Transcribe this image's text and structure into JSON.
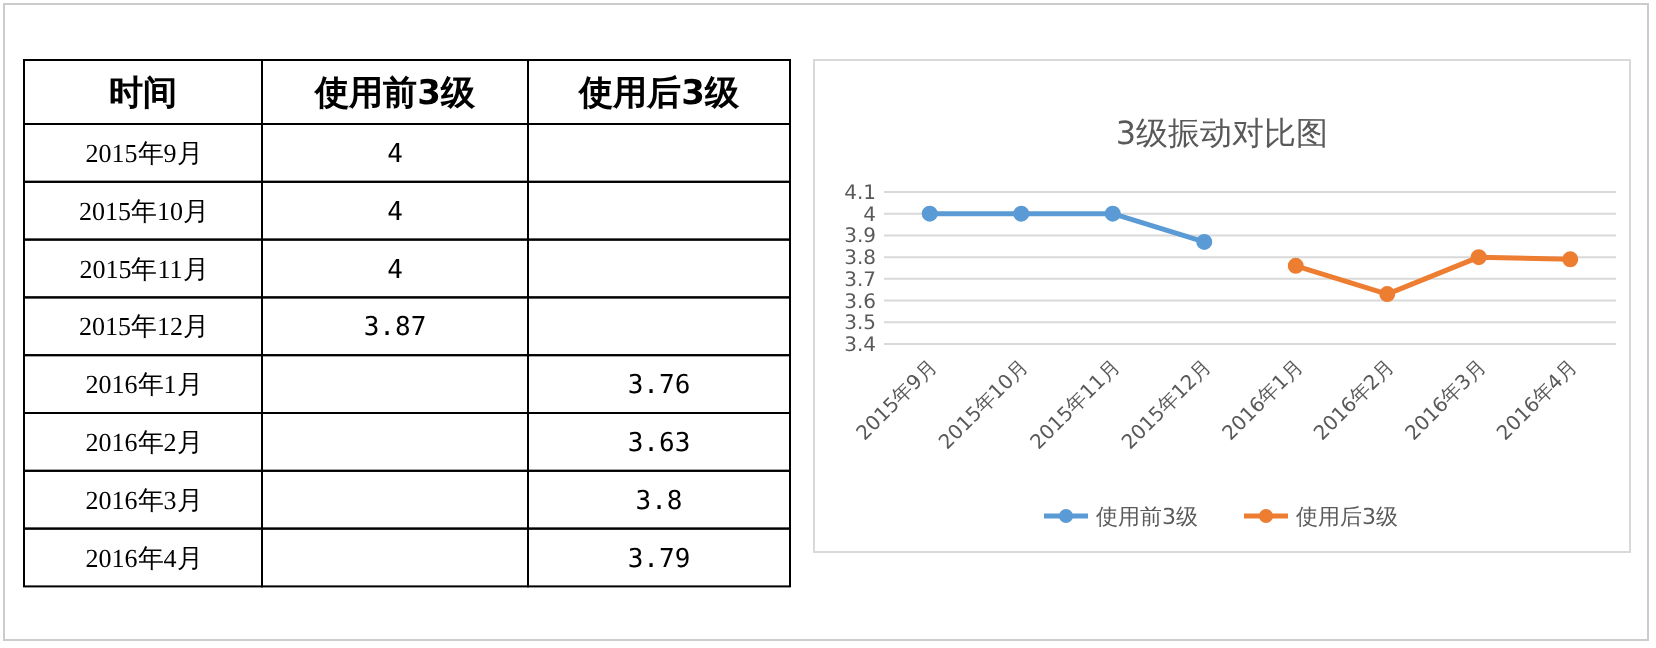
{
  "chart_data": [
    {
      "type": "other",
      "annotations": [
        "时间"
      ],
      "categories": [
        "2015年9月",
        "2015年10月",
        "2015年11月",
        "2015年12月",
        "2016年1月",
        "2016年2月",
        "2016年3月",
        "2016年4月"
      ],
      "series": [
        {
          "name": "使用前3级",
          "values": [
            4,
            4,
            4,
            3.87,
            null,
            null,
            null,
            null
          ]
        },
        {
          "name": "使用后3级",
          "values": [
            null,
            null,
            null,
            null,
            3.76,
            3.63,
            3.8,
            3.79
          ]
        }
      ],
      "data_labels": true
    },
    {
      "type": "line",
      "title": "3级振动对比图",
      "categories": [
        "2015年9月",
        "2015年10月",
        "2015年11月",
        "2015年12月",
        "2016年1月",
        "2016年2月",
        "2016年3月",
        "2016年4月"
      ],
      "series": [
        {
          "name": "使用前3级",
          "color": "#5b9bd5",
          "values": [
            4,
            4,
            4,
            3.87,
            null,
            null,
            null,
            null
          ]
        },
        {
          "name": "使用后3级",
          "color": "#ed7d31",
          "values": [
            null,
            null,
            null,
            null,
            3.76,
            3.63,
            3.8,
            3.79
          ]
        }
      ],
      "ylim": [
        3.4,
        4.1
      ],
      "yticks": [
        3.4,
        3.5,
        3.6,
        3.7,
        3.8,
        3.9,
        4,
        4.1
      ],
      "grid": "y",
      "legend": "bottom",
      "marker": "circle",
      "line_style": "solid"
    }
  ]
}
